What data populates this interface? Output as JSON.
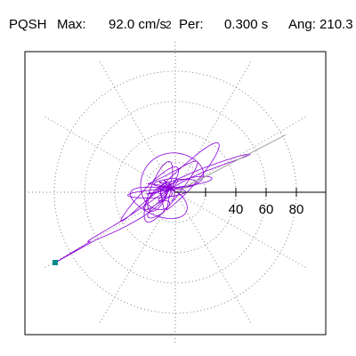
{
  "header": {
    "station": "PQSH",
    "max_label": "Max:",
    "max_value": "92.0 cm/s",
    "max_unit_exp": "2",
    "per_label": "Per:",
    "per_value": "0.300 s",
    "ang_label": "Ang:",
    "ang_value": "210.3"
  },
  "chart_data": {
    "type": "scatter",
    "title": "",
    "xlabel": "",
    "ylabel": "",
    "radial_ticks": [
      20,
      40,
      60,
      80
    ],
    "radial_tick_labels": [
      "40",
      "60",
      "80"
    ],
    "rlim": [
      0,
      100
    ],
    "angle_grid_deg": [
      0,
      30,
      60,
      90,
      120,
      150,
      180,
      210,
      240,
      270,
      300,
      330
    ],
    "grid": true,
    "peak": {
      "x": -79.4,
      "y": -46.5
    },
    "colors": {
      "trace": "#8a00d8",
      "grid": "#808080",
      "axis": "#000000",
      "marker": "#008b8b"
    }
  }
}
